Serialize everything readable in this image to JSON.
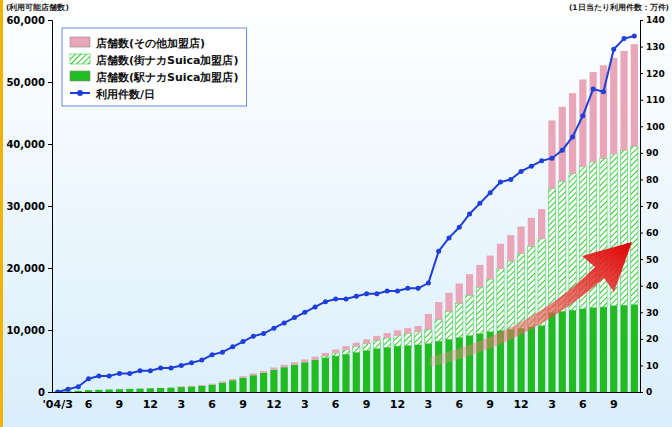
{
  "chart_data": {
    "type": "bar",
    "ylabel": "(利用可能店舗数)",
    "y2label": "(1日当たり利用件数：万件)",
    "categories": [
      "'04/3",
      null,
      null,
      "6",
      null,
      null,
      "9",
      null,
      null,
      "12",
      null,
      null,
      "3",
      null,
      null,
      "6",
      null,
      null,
      "9",
      null,
      null,
      "12",
      null,
      null,
      "3",
      null,
      null,
      "6",
      null,
      null,
      "9",
      null,
      null,
      "12",
      null,
      null,
      "3",
      null,
      null,
      "6",
      null,
      null,
      "9",
      null,
      null,
      "12",
      null,
      null,
      "3",
      null,
      null,
      "6",
      null,
      null,
      "9",
      null,
      null
    ],
    "stacked": true,
    "grid": false,
    "legend": "upper left",
    "ylim": [
      0,
      60000
    ],
    "yticks": [
      0,
      {
        "value": 10000,
        "label": "10,000"
      },
      {
        "value": 20000,
        "label": "20,000"
      },
      {
        "value": 30000,
        "label": "30,000"
      },
      {
        "value": 40000,
        "label": "40,000"
      },
      {
        "value": 50000,
        "label": "50,000"
      },
      {
        "value": 60000,
        "label": "60,000"
      }
    ],
    "y2lim": [
      0,
      140
    ],
    "y2ticks": [
      0,
      10,
      20,
      30,
      40,
      50,
      60,
      70,
      80,
      90,
      100,
      110,
      120,
      130,
      140
    ],
    "series": [
      {
        "name": "店舗数(その他加盟店)",
        "type": "bar",
        "color": "#e8a6b8",
        "values": [
          0,
          0,
          0,
          0,
          0,
          0,
          0,
          0,
          0,
          0,
          0,
          0,
          100,
          100,
          150,
          150,
          200,
          200,
          250,
          300,
          300,
          350,
          400,
          400,
          450,
          500,
          500,
          550,
          600,
          650,
          700,
          750,
          800,
          850,
          900,
          950,
          2500,
          2800,
          3000,
          3200,
          3400,
          3600,
          3800,
          4000,
          4200,
          4400,
          4600,
          4800,
          11000,
          12000,
          13000,
          14000,
          14500,
          15000,
          15500,
          16000,
          16500
        ]
      },
      {
        "name": "店舗数(街ナカSuica加盟店)",
        "type": "bar",
        "color": "#33cc33",
        "values": [
          0,
          0,
          0,
          0,
          0,
          0,
          0,
          0,
          0,
          0,
          0,
          0,
          0,
          0,
          0,
          0,
          0,
          0,
          0,
          0,
          0,
          0,
          0,
          0,
          0,
          0,
          300,
          500,
          700,
          900,
          1100,
          1300,
          1500,
          1700,
          1900,
          2100,
          2300,
          3500,
          4500,
          5500,
          6500,
          7500,
          8500,
          10000,
          11000,
          12000,
          13000,
          14000,
          20000,
          21000,
          22000,
          23000,
          23500,
          24000,
          24500,
          25000,
          25500
        ]
      },
      {
        "name": "店舗数(駅ナカSuica加盟店)",
        "type": "bar",
        "color": "#22bb22",
        "values": [
          50,
          100,
          200,
          300,
          350,
          400,
          450,
          500,
          550,
          600,
          650,
          700,
          800,
          900,
          1000,
          1200,
          1500,
          1900,
          2300,
          2700,
          3100,
          3600,
          4000,
          4400,
          4800,
          5200,
          5500,
          5800,
          6100,
          6400,
          6700,
          7000,
          7200,
          7400,
          7500,
          7600,
          7800,
          8200,
          8500,
          8800,
          9100,
          9400,
          9700,
          9900,
          10100,
          10300,
          10500,
          10700,
          12800,
          13000,
          13200,
          13400,
          13600,
          13700,
          13900,
          14000,
          14100
        ]
      },
      {
        "name": "利用件数/日",
        "type": "line",
        "axis": "y2",
        "color": "#1f3fd9",
        "marker": "circle",
        "values": [
          0,
          1,
          2,
          5,
          6,
          6,
          7,
          7,
          8,
          8,
          9,
          9,
          10,
          11,
          12,
          14,
          15,
          17,
          19,
          21,
          22,
          24,
          26,
          28,
          30,
          32,
          34,
          35,
          35,
          36,
          37,
          37,
          38,
          38,
          39,
          39,
          41,
          53,
          58,
          62,
          67,
          71,
          75,
          79,
          80,
          83,
          85,
          87,
          88,
          91,
          96,
          104,
          114,
          113,
          129,
          133,
          134
        ]
      }
    ]
  }
}
